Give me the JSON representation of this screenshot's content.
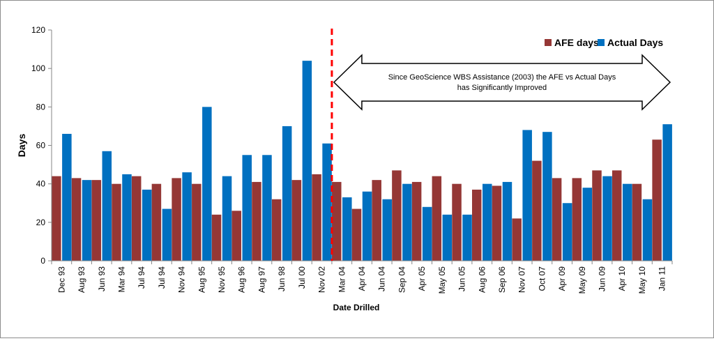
{
  "chart_data": {
    "type": "bar",
    "title": "",
    "xlabel": "Date Drilled",
    "ylabel": "Days",
    "ylim": [
      0,
      120
    ],
    "yticks": [
      0,
      20,
      40,
      60,
      80,
      100,
      120
    ],
    "grid": false,
    "legend_position": "top-right",
    "categories": [
      "Dec 93",
      "Aug 93",
      "Jun 93",
      "Mar 94",
      "Jul 94",
      "Jul 94",
      "Nov 94",
      "Aug 95",
      "Nov 95",
      "Aug 96",
      "Aug 97",
      "Jun 98",
      "Jul 00",
      "Nov 02",
      "Mar 04",
      "Apr 04",
      "Jun 04",
      "Sep 04",
      "Apr 05",
      "May 05",
      "Jun 05",
      "Aug 06",
      "Sep 06",
      "Nov 07",
      "Oct 07",
      "Apr 09",
      "May 09",
      "Jun 09",
      "Apr 10",
      "May 10",
      "Jan 11"
    ],
    "series": [
      {
        "name": "AFE days",
        "color": "#953735",
        "values": [
          44,
          43,
          42,
          40,
          44,
          40,
          43,
          40,
          24,
          26,
          41,
          32,
          42,
          45,
          41,
          27,
          42,
          47,
          41,
          44,
          40,
          37,
          39,
          22,
          52,
          43,
          43,
          47,
          47,
          40,
          63
        ]
      },
      {
        "name": "Actual Days",
        "color": "#0070C0",
        "values": [
          66,
          42,
          57,
          45,
          37,
          27,
          46,
          80,
          44,
          55,
          55,
          70,
          104,
          61,
          33,
          36,
          32,
          40,
          28,
          24,
          24,
          40,
          41,
          68,
          67,
          30,
          38,
          44,
          40,
          32,
          71
        ]
      }
    ],
    "divider_after_category": "Nov 02",
    "annotation": {
      "line1": "Since GeoScience WBS Assistance (2003) the AFE vs Actual Days",
      "line2": "has Significantly Improved"
    }
  }
}
